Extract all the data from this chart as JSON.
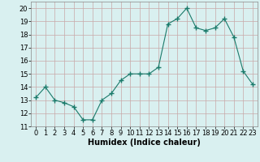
{
  "x": [
    0,
    1,
    2,
    3,
    4,
    5,
    6,
    7,
    8,
    9,
    10,
    11,
    12,
    13,
    14,
    15,
    16,
    17,
    18,
    19,
    20,
    21,
    22,
    23
  ],
  "y": [
    13.2,
    14.0,
    13.0,
    12.8,
    12.5,
    11.5,
    11.5,
    13.0,
    13.5,
    14.5,
    15.0,
    15.0,
    15.0,
    15.5,
    18.8,
    19.2,
    20.0,
    18.5,
    18.3,
    18.5,
    19.2,
    17.8,
    15.2,
    14.2
  ],
  "xlabel": "Humidex (Indice chaleur)",
  "ylim": [
    11,
    20.5
  ],
  "xlim": [
    -0.5,
    23.5
  ],
  "yticks": [
    11,
    12,
    13,
    14,
    15,
    16,
    17,
    18,
    19,
    20
  ],
  "xticks": [
    0,
    1,
    2,
    3,
    4,
    5,
    6,
    7,
    8,
    9,
    10,
    11,
    12,
    13,
    14,
    15,
    16,
    17,
    18,
    19,
    20,
    21,
    22,
    23
  ],
  "line_color": "#1a7a6a",
  "marker": "+",
  "marker_size": 4,
  "bg_color": "#d9f0f0",
  "grid_color": "#c8a8a8",
  "label_fontsize": 7,
  "tick_fontsize": 6
}
